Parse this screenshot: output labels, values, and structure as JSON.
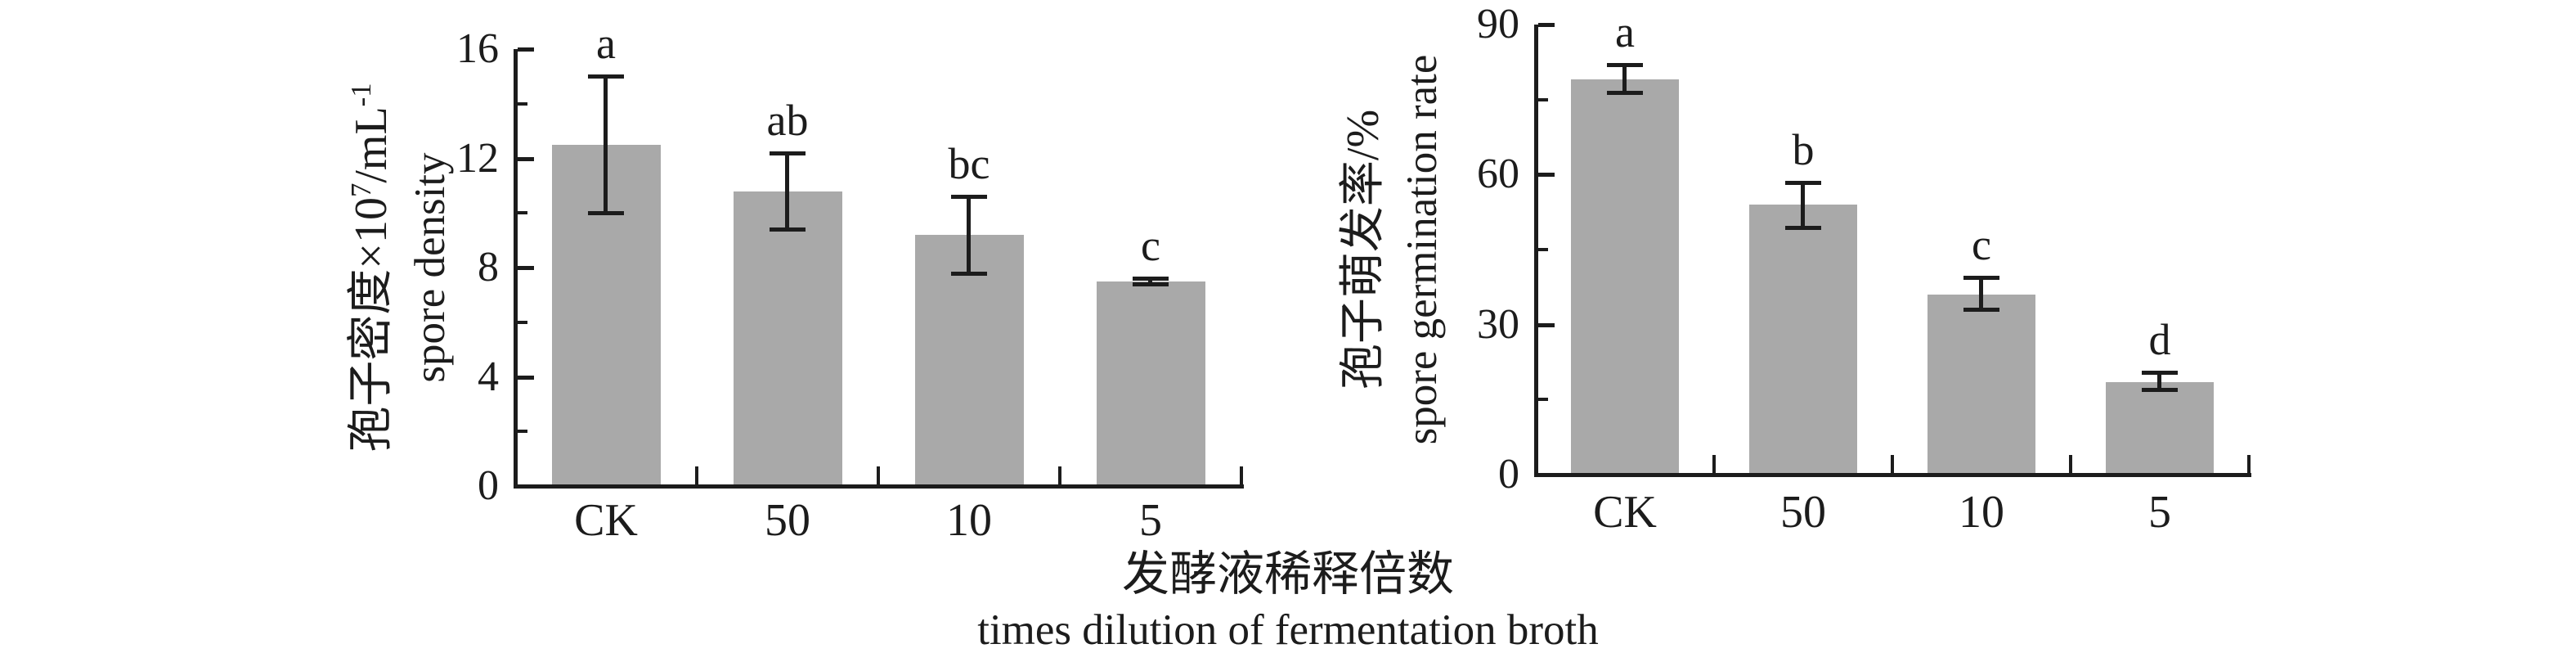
{
  "figure": {
    "xlabel_zh": "发酵液稀释倍数",
    "xlabel_en": "times dilution of fermentation broth",
    "bar_color": "#a9a9a9",
    "axis_color": "#1c1c1c"
  },
  "chart_data": [
    {
      "type": "bar",
      "ylabel_zh_prefix": "孢子密度×10",
      "ylabel_zh_sup1": "7",
      "ylabel_zh_mid": "/mL",
      "ylabel_zh_sup2": "-1",
      "ylabel_zh_full": "孢子密度×10⁷/mL⁻¹",
      "ylabel_en": "spore density",
      "categories": [
        "CK",
        "50",
        "10",
        "5"
      ],
      "values": [
        12.5,
        10.8,
        9.2,
        7.5
      ],
      "error_low": [
        10.0,
        9.4,
        7.8,
        7.4
      ],
      "error_high": [
        15.0,
        12.2,
        10.6,
        7.6
      ],
      "sig_letters": [
        "a",
        "ab",
        "bc",
        "c"
      ],
      "ylim": [
        0,
        16
      ],
      "yticks": [
        0,
        4,
        8,
        12,
        16
      ],
      "yticks_minor": [
        2,
        6,
        10,
        14
      ],
      "grid": "off",
      "legend": "none"
    },
    {
      "type": "bar",
      "ylabel_zh_full": "孢子萌发率/%",
      "ylabel_en": "spore germination rate",
      "categories": [
        "CK",
        "50",
        "10",
        "5"
      ],
      "values": [
        79,
        54,
        36,
        18.5
      ],
      "error_low": [
        76.5,
        49.5,
        33.0,
        17.0
      ],
      "error_high": [
        82.0,
        58.5,
        39.5,
        20.5
      ],
      "sig_letters": [
        "a",
        "b",
        "c",
        "d"
      ],
      "ylim": [
        0,
        90
      ],
      "yticks": [
        0,
        30,
        60,
        90
      ],
      "yticks_minor": [
        15,
        45,
        75
      ],
      "grid": "off",
      "legend": "none"
    }
  ]
}
